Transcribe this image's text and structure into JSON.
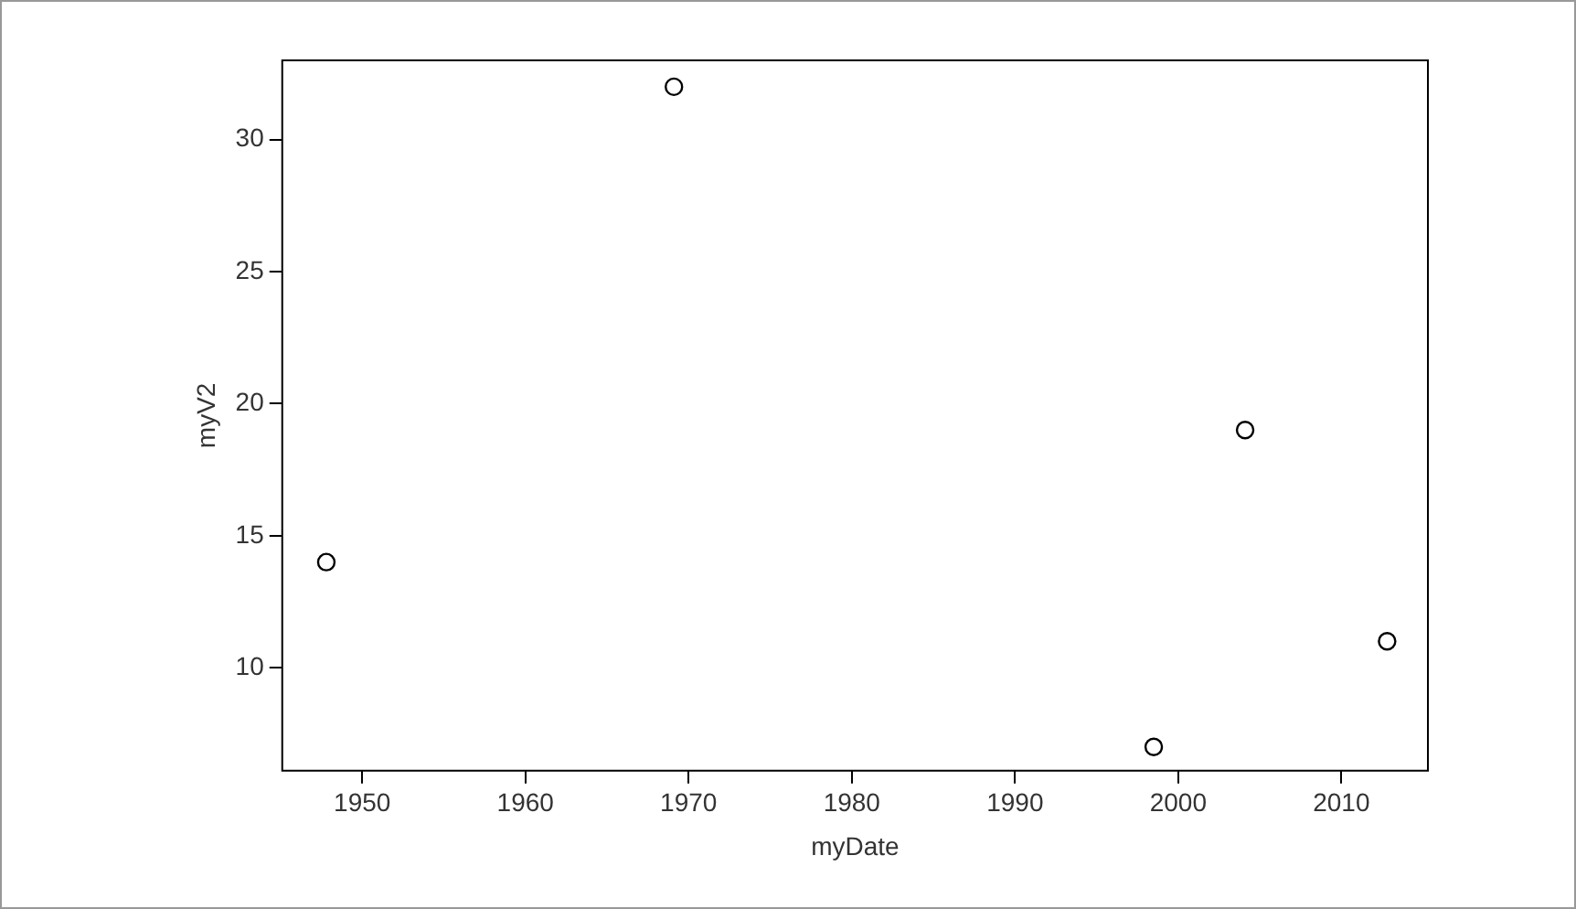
{
  "chart_data": {
    "type": "scatter",
    "xlabel": "myDate",
    "ylabel": "myV2",
    "x": [
      1947.8,
      1969.1,
      1998.5,
      2004.1,
      2012.8
    ],
    "values": [
      14,
      32,
      7,
      19,
      11
    ],
    "color": "#000000",
    "marker": "circle",
    "grid": false,
    "legend": false,
    "xlim": [
      1945.1,
      2015.3
    ],
    "xticks": [
      1950,
      1960,
      1970,
      1980,
      1990,
      2000,
      2010
    ],
    "ylim": [
      6.1,
      33
    ],
    "yticks": [
      10,
      15,
      20,
      25,
      30
    ]
  }
}
